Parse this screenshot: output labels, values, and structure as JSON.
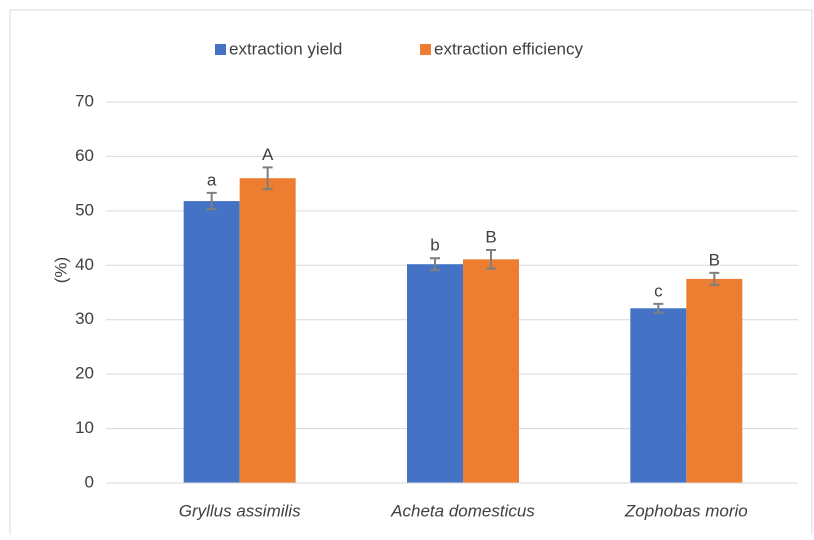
{
  "chart_data": {
    "type": "bar",
    "y_label": "(%)",
    "categories": [
      "Gryllus assimilis",
      "Acheta domesticus",
      "Zophobas morio"
    ],
    "series": [
      {
        "name": "extraction yield",
        "color": "#4472c4",
        "values": [
          51.8,
          40.2,
          32.1
        ],
        "errors": [
          1.5,
          1.1,
          0.8
        ],
        "annotations": [
          "a",
          "b",
          "c"
        ]
      },
      {
        "name": "extraction efficiency",
        "color": "#ed7d31",
        "values": [
          56.0,
          41.1,
          37.5
        ],
        "errors": [
          2.0,
          1.7,
          1.1
        ],
        "annotations": [
          "A",
          "B",
          "B"
        ]
      }
    ],
    "ylim": [
      0,
      70
    ],
    "yticks": [
      0,
      10,
      20,
      30,
      40,
      50,
      60,
      70
    ],
    "grid": true,
    "legend": "top"
  }
}
